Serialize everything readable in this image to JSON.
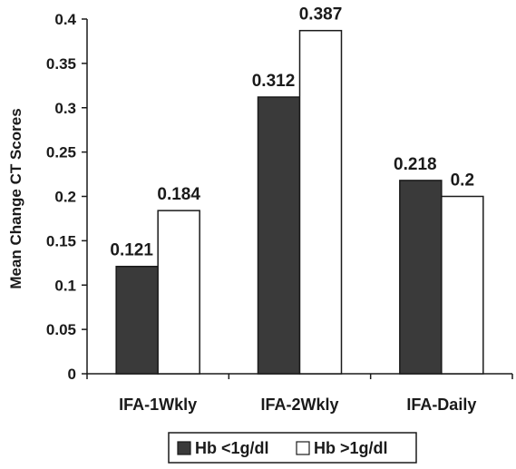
{
  "chart_data": {
    "type": "bar",
    "title": "",
    "xlabel": "",
    "ylabel": "Mean Change CT Scores",
    "ylim": [
      0,
      0.4
    ],
    "yticks": [
      "0",
      "0.05",
      "0.1",
      "0.15",
      "0.2",
      "0.25",
      "0.3",
      "0.35",
      "0.4"
    ],
    "categories": [
      "IFA-1Wkly",
      "IFA-2Wkly",
      "IFA-Daily"
    ],
    "series": [
      {
        "name": "Hb <1g/dl",
        "values": [
          0.121,
          0.312,
          0.218
        ],
        "labels": [
          "0.121",
          "0.312",
          "0.218"
        ],
        "color": "#3a3a3a"
      },
      {
        "name": "Hb >1g/dl",
        "values": [
          0.184,
          0.387,
          0.2
        ],
        "labels": [
          "0.184",
          "0.387",
          "0.2"
        ],
        "color": "#ffffff"
      }
    ],
    "grid": false,
    "legend": "bottom"
  }
}
